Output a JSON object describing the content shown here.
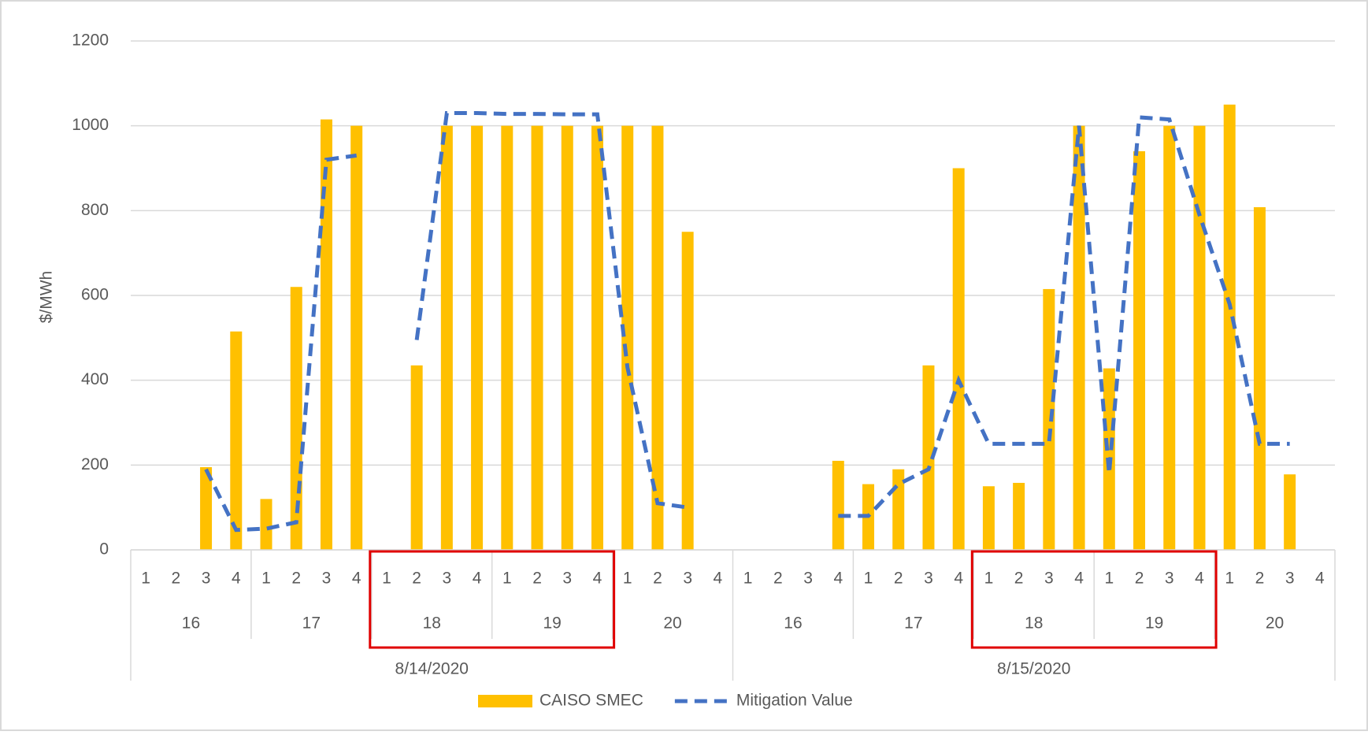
{
  "chart_data": {
    "type": "bar_line",
    "y_label": "$/MWh",
    "categories": [
      "1",
      "2",
      "3",
      "4",
      "1",
      "2",
      "3",
      "4",
      "1",
      "2",
      "3",
      "4",
      "1",
      "2",
      "3",
      "4",
      "1",
      "2",
      "3",
      "4",
      "1",
      "2",
      "3",
      "4",
      "1",
      "2",
      "3",
      "4",
      "1",
      "2",
      "3",
      "4",
      "1",
      "2",
      "3",
      "4",
      "1",
      "2",
      "3",
      "4"
    ],
    "hours": [
      "16",
      "17",
      "18",
      "19",
      "20",
      "16",
      "17",
      "18",
      "19",
      "20"
    ],
    "dates": [
      "8/14/2020",
      "8/15/2020"
    ],
    "ylim": [
      0,
      1200
    ],
    "yticks": [
      0,
      200,
      400,
      600,
      800,
      1000,
      1200
    ],
    "grid": true,
    "legend": "bottom",
    "series": [
      {
        "name": "CAISO SMEC",
        "type": "bar",
        "color": "#ffc000",
        "values": [
          null,
          null,
          195,
          515,
          120,
          620,
          1015,
          1000,
          null,
          435,
          1000,
          1000,
          1000,
          1000,
          1000,
          1000,
          1000,
          1000,
          750,
          null,
          null,
          null,
          null,
          210,
          155,
          190,
          435,
          900,
          150,
          158,
          615,
          1000,
          428,
          940,
          1000,
          1000,
          1050,
          808,
          178,
          null
        ]
      },
      {
        "name": "Mitigation Value",
        "type": "line",
        "color": "#4472c4",
        "values": [
          null,
          null,
          190,
          47,
          50,
          65,
          920,
          930,
          null,
          495,
          1030,
          1030,
          1028,
          1028,
          1027,
          1027,
          430,
          110,
          100,
          null,
          null,
          null,
          null,
          80,
          80,
          155,
          190,
          400,
          250,
          250,
          250,
          1000,
          180,
          1020,
          1015,
          790,
          580,
          250,
          250,
          null
        ]
      }
    ]
  }
}
